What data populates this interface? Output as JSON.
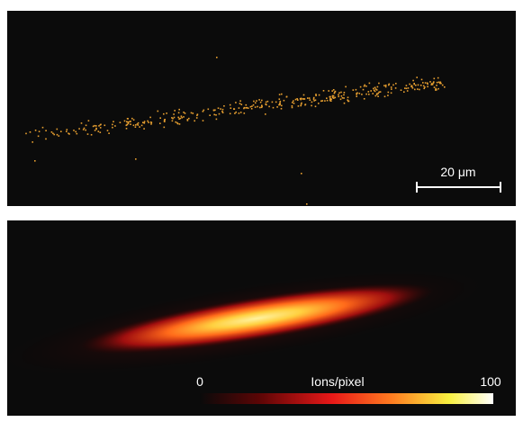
{
  "top_panel": {
    "scale_bar_label": "20 μm"
  },
  "bottom_panel": {
    "colorbar": {
      "label": "Ions/pixel",
      "min": 0,
      "max": 100
    }
  }
}
